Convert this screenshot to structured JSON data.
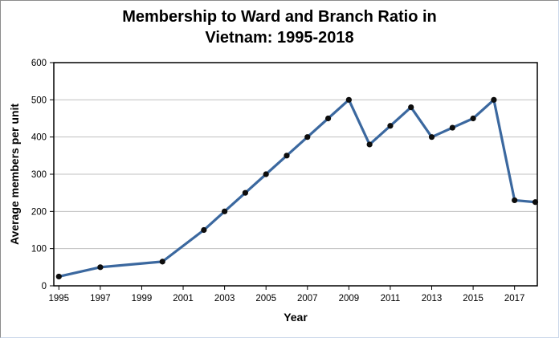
{
  "chart_data": {
    "type": "line",
    "title": "Membership to Ward and Branch Ratio in Vietnam: 1995-2018",
    "title_lines": [
      "Membership to Ward and Branch Ratio in",
      "Vietnam: 1995-2018"
    ],
    "xlabel": "Year",
    "ylabel": "Average members per unit",
    "x": [
      1995,
      1997,
      2000,
      2002,
      2003,
      2004,
      2005,
      2006,
      2007,
      2008,
      2009,
      2010,
      2011,
      2012,
      2013,
      2014,
      2015,
      2016,
      2017,
      2018
    ],
    "y": [
      25,
      50,
      65,
      150,
      200,
      250,
      300,
      350,
      400,
      450,
      500,
      380,
      430,
      480,
      400,
      425,
      450,
      500,
      230,
      225
    ],
    "x_ticks": [
      1995,
      1997,
      1999,
      2001,
      2003,
      2005,
      2007,
      2009,
      2011,
      2013,
      2015,
      2017
    ],
    "y_ticks": [
      0,
      100,
      200,
      300,
      400,
      500,
      600
    ],
    "xlim": [
      1995,
      2018
    ],
    "ylim": [
      0,
      600
    ],
    "grid": "horizontal-only",
    "legend": "none",
    "marker_shape": "circle",
    "colors": {
      "line": "#3B689F",
      "marker": "#0D0D0D",
      "gridline": "#C0C0C0",
      "axis": "#000000",
      "background": "#FFFFFF",
      "title_text": "#000000"
    }
  }
}
